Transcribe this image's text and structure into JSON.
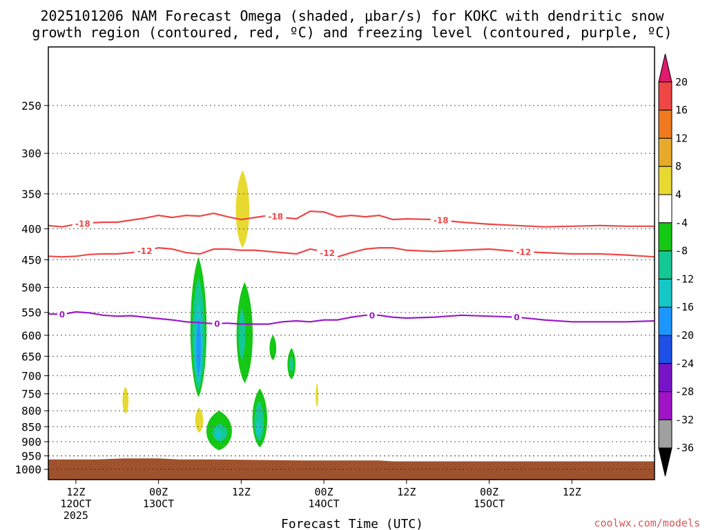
{
  "chart_data": {
    "type": "time-height cross section",
    "title_line1": "2025101206 NAM Forecast Omega (shaded, μbar/s) for KOKC with dendritic snow",
    "title_line2": "growth region (contoured, red, ºC) and freezing level (contoured, purple, ºC)",
    "xlabel": "Forecast Time (UTC)",
    "credit": "coolwx.com/models",
    "x_hours_range": [
      -4,
      84
    ],
    "y_pressure_range": [
      1040,
      200
    ],
    "y_ticks": [
      250,
      300,
      350,
      400,
      450,
      500,
      550,
      600,
      650,
      700,
      750,
      800,
      850,
      900,
      950,
      1000
    ],
    "x_ticks": [
      {
        "hour": 0,
        "line1": "12Z",
        "line2": "12OCT",
        "line3": "2025"
      },
      {
        "hour": 12,
        "line1": "00Z",
        "line2": "13OCT",
        "line3": ""
      },
      {
        "hour": 24,
        "line1": "12Z",
        "line2": "",
        "line3": ""
      },
      {
        "hour": 36,
        "line1": "00Z",
        "line2": "14OCT",
        "line3": ""
      },
      {
        "hour": 48,
        "line1": "12Z",
        "line2": "",
        "line3": ""
      },
      {
        "hour": 60,
        "line1": "00Z",
        "line2": "15OCT",
        "line3": ""
      },
      {
        "hour": 72,
        "line1": "12Z",
        "line2": "",
        "line3": ""
      }
    ],
    "colorbar": {
      "labels": [
        "20",
        "16",
        "12",
        "8",
        "4",
        "-4",
        "-8",
        "-12",
        "-16",
        "-20",
        "-24",
        "-28",
        "-32",
        "-36"
      ],
      "bands": [
        {
          "color": "#e01a6e",
          "kind": "arrow-up"
        },
        {
          "color": "#ef4646"
        },
        {
          "color": "#f07a1f"
        },
        {
          "color": "#e8aa2a"
        },
        {
          "color": "#e8d930"
        },
        {
          "color": "#ffffff"
        },
        {
          "color": "#14c814"
        },
        {
          "color": "#14c896"
        },
        {
          "color": "#14c8c8"
        },
        {
          "color": "#1e96ff"
        },
        {
          "color": "#1e50e6"
        },
        {
          "color": "#7814c8"
        },
        {
          "color": "#a014c8"
        },
        {
          "color": "#a0a0a0"
        },
        {
          "color": "#000000",
          "kind": "arrow-down"
        }
      ]
    },
    "ground_color": "#a0522d",
    "ground_pressure": [
      [
        -4,
        963
      ],
      [
        3,
        963
      ],
      [
        7,
        959
      ],
      [
        12,
        959
      ],
      [
        15,
        963
      ],
      [
        20,
        963
      ],
      [
        33,
        967
      ],
      [
        44,
        967
      ],
      [
        46,
        970
      ],
      [
        84,
        970
      ]
    ],
    "omega_areas": [
      {
        "color": "#e8d930",
        "hour": 24.2,
        "p_top": 320,
        "p_bottom": 430,
        "half_width_h": 1.0,
        "value": "4-8"
      },
      {
        "color": "#e8d930",
        "hour": 7.2,
        "p_top": 730,
        "p_bottom": 810,
        "half_width_h": 0.45,
        "value": "4-8"
      },
      {
        "color": "#e8d930",
        "hour": 35.0,
        "p_top": 720,
        "p_bottom": 790,
        "half_width_h": 0.2,
        "value": "4-8"
      },
      {
        "color": "#e8d930",
        "hour": 17.9,
        "p_top": 790,
        "p_bottom": 870,
        "half_width_h": 0.6,
        "value": "4-8"
      },
      {
        "color": "#14c814",
        "hour": 17.8,
        "p_top": 445,
        "p_bottom": 760,
        "half_width_h": 1.2,
        "value": "-4 to -8"
      },
      {
        "color": "#14c896",
        "hour": 17.8,
        "p_top": 480,
        "p_bottom": 740,
        "half_width_h": 0.9,
        "value": "-8 to -12"
      },
      {
        "color": "#14c8c8",
        "hour": 17.8,
        "p_top": 530,
        "p_bottom": 720,
        "half_width_h": 0.6,
        "value": "-12 to -16"
      },
      {
        "color": "#1e96ff",
        "hour": 17.8,
        "p_top": 560,
        "p_bottom": 700,
        "half_width_h": 0.35,
        "value": "-16 to -20"
      },
      {
        "color": "#14c814",
        "hour": 24.5,
        "p_top": 490,
        "p_bottom": 720,
        "half_width_h": 1.2,
        "value": "-4 to -8"
      },
      {
        "color": "#14c896",
        "hour": 24.1,
        "p_top": 540,
        "p_bottom": 660,
        "half_width_h": 0.5,
        "value": "-8 to -12"
      },
      {
        "color": "#14c814",
        "hour": 28.6,
        "p_top": 600,
        "p_bottom": 660,
        "half_width_h": 0.5,
        "value": "-4 to -8"
      },
      {
        "color": "#14c814",
        "hour": 31.3,
        "p_top": 630,
        "p_bottom": 710,
        "half_width_h": 0.6,
        "value": "-4 to -8"
      },
      {
        "color": "#14c896",
        "hour": 31.3,
        "p_top": 650,
        "p_bottom": 690,
        "half_width_h": 0.3,
        "value": "-8 to -12"
      },
      {
        "color": "#14c814",
        "hour": 26.7,
        "p_top": 735,
        "p_bottom": 920,
        "half_width_h": 1.1,
        "value": "-4 to -8"
      },
      {
        "color": "#14c896",
        "hour": 26.6,
        "p_top": 770,
        "p_bottom": 900,
        "half_width_h": 0.7,
        "value": "-8 to -12"
      },
      {
        "color": "#14c8c8",
        "hour": 26.5,
        "p_top": 830,
        "p_bottom": 880,
        "half_width_h": 0.35,
        "value": "-12 to -16"
      },
      {
        "color": "#14c814",
        "hour": 20.8,
        "p_top": 800,
        "p_bottom": 930,
        "half_width_h": 1.9,
        "value": "-4 to -8"
      },
      {
        "color": "#14c896",
        "hour": 20.9,
        "p_top": 840,
        "p_bottom": 900,
        "half_width_h": 1.1,
        "value": "-8 to -12"
      },
      {
        "color": "#14c8c8",
        "hour": 20.7,
        "p_top": 860,
        "p_bottom": 890,
        "half_width_h": 0.5,
        "value": "-12 to -16"
      }
    ],
    "contours": [
      {
        "label": "-18",
        "color": "#ef4646",
        "points": [
          [
            -4,
            395
          ],
          [
            -2,
            397
          ],
          [
            0,
            393
          ],
          [
            2,
            391
          ],
          [
            4,
            390
          ],
          [
            6,
            390
          ],
          [
            8,
            387
          ],
          [
            10,
            384
          ],
          [
            12,
            380
          ],
          [
            14,
            383
          ],
          [
            16,
            380
          ],
          [
            18,
            381
          ],
          [
            20,
            377
          ],
          [
            22,
            382
          ],
          [
            24,
            386
          ],
          [
            26,
            383
          ],
          [
            28,
            380
          ],
          [
            30,
            383
          ],
          [
            32,
            385
          ],
          [
            34,
            374
          ],
          [
            36,
            375
          ],
          [
            38,
            382
          ],
          [
            40,
            380
          ],
          [
            42,
            382
          ],
          [
            44,
            380
          ],
          [
            46,
            386
          ],
          [
            48,
            385
          ],
          [
            52,
            386
          ],
          [
            56,
            390
          ],
          [
            60,
            393
          ],
          [
            64,
            395
          ],
          [
            68,
            397
          ],
          [
            72,
            396
          ],
          [
            76,
            395
          ],
          [
            80,
            396
          ],
          [
            84,
            396
          ]
        ],
        "label_hours": [
          1,
          29,
          53
        ]
      },
      {
        "label": "-12",
        "color": "#ef4646",
        "points": [
          [
            -4,
            444
          ],
          [
            -2,
            445
          ],
          [
            0,
            444
          ],
          [
            2,
            441
          ],
          [
            4,
            440
          ],
          [
            6,
            440
          ],
          [
            8,
            438
          ],
          [
            10,
            435
          ],
          [
            12,
            430
          ],
          [
            14,
            432
          ],
          [
            16,
            438
          ],
          [
            18,
            440
          ],
          [
            20,
            432
          ],
          [
            22,
            432
          ],
          [
            24,
            434
          ],
          [
            26,
            434
          ],
          [
            28,
            436
          ],
          [
            30,
            438
          ],
          [
            32,
            440
          ],
          [
            34,
            432
          ],
          [
            36,
            436
          ],
          [
            38,
            445
          ],
          [
            40,
            438
          ],
          [
            42,
            432
          ],
          [
            44,
            430
          ],
          [
            46,
            430
          ],
          [
            48,
            434
          ],
          [
            52,
            436
          ],
          [
            56,
            434
          ],
          [
            60,
            432
          ],
          [
            64,
            436
          ],
          [
            68,
            438
          ],
          [
            72,
            440
          ],
          [
            76,
            440
          ],
          [
            80,
            442
          ],
          [
            84,
            445
          ]
        ],
        "label_hours": [
          10,
          36.5,
          65
        ]
      },
      {
        "label": "0",
        "color": "#9b19c8",
        "points": [
          [
            -4,
            553
          ],
          [
            -2,
            554
          ],
          [
            0,
            549
          ],
          [
            2,
            551
          ],
          [
            4,
            556
          ],
          [
            6,
            558
          ],
          [
            8,
            557
          ],
          [
            10,
            560
          ],
          [
            12,
            563
          ],
          [
            14,
            566
          ],
          [
            16,
            570
          ],
          [
            18,
            572
          ],
          [
            20,
            574
          ],
          [
            22,
            573
          ],
          [
            24,
            575
          ],
          [
            26,
            575
          ],
          [
            28,
            575
          ],
          [
            30,
            570
          ],
          [
            32,
            568
          ],
          [
            34,
            570
          ],
          [
            36,
            566
          ],
          [
            38,
            566
          ],
          [
            40,
            560
          ],
          [
            42,
            556
          ],
          [
            44,
            556
          ],
          [
            46,
            560
          ],
          [
            48,
            562
          ],
          [
            52,
            560
          ],
          [
            56,
            556
          ],
          [
            60,
            558
          ],
          [
            64,
            560
          ],
          [
            68,
            566
          ],
          [
            72,
            570
          ],
          [
            76,
            570
          ],
          [
            80,
            570
          ],
          [
            84,
            568
          ]
        ],
        "label_hours": [
          -2,
          20.5,
          43,
          64
        ]
      }
    ]
  }
}
